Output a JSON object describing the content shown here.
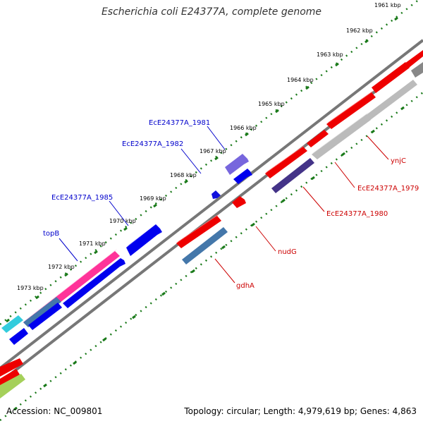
{
  "title": "Escherichia coli E24377A, complete genome",
  "footer": {
    "accession": "Accession: NC_009801",
    "topology": "Topology: circular; Length: 4,979,619 bp; Genes: 4,863"
  },
  "colors": {
    "backbone": "#777777",
    "ruler": "#1a7a1a",
    "plus_label": "#0000cc",
    "minus_label": "#cc0000"
  },
  "ruler_labels": [
    "1961 kbp",
    "1962 kbp",
    "1963 kbp",
    "1964 kbp",
    "1965 kbp",
    "1966 kbp",
    "1967 kbp",
    "1968 kbp",
    "1969 kbp",
    "1970 kbp",
    "1971 kbp",
    "1972 kbp",
    "1973 kbp"
  ],
  "gene_labels": {
    "EcE24377A_1981": "EcE24377A_1981",
    "EcE24377A_1982": "EcE24377A_1982",
    "EcE24377A_1985": "EcE24377A_1985",
    "topB": "topB",
    "ynjC": "ynjC",
    "EcE24377A_1979": "EcE24377A_1979",
    "EcE24377A_1980": "EcE24377A_1980",
    "nudG": "nudG",
    "gdhA": "gdhA"
  }
}
